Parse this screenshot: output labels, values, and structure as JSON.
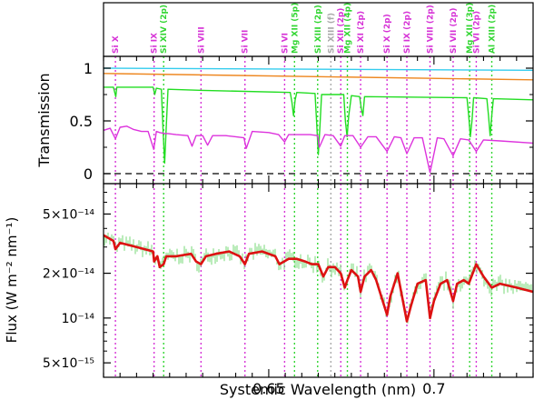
{
  "chart_data": [
    {
      "type": "line",
      "panel": "top",
      "ylabel": "Transmission",
      "ylim": [
        -0.1,
        1.18
      ],
      "yticks": [
        "0",
        "0.5",
        "1"
      ],
      "xlim": [
        0.6,
        0.73
      ],
      "line_labels": [
        {
          "text": "Si X",
          "x": 0.6036,
          "color": "#d633d6"
        },
        {
          "text": "Si IX",
          "x": 0.6153,
          "color": "#d633d6"
        },
        {
          "text": "Si XIV (2p)",
          "x": 0.6182,
          "color": "#33d633"
        },
        {
          "text": "Si VIII",
          "x": 0.6295,
          "color": "#d633d6"
        },
        {
          "text": "Si VII",
          "x": 0.6428,
          "color": "#d633d6"
        },
        {
          "text": "Si VI",
          "x": 0.6548,
          "color": "#d633d6"
        },
        {
          "text": "Mg XII (5p)",
          "x": 0.6578,
          "color": "#33d633"
        },
        {
          "text": "Si XIII (2p)",
          "x": 0.6648,
          "color": "#33d633"
        },
        {
          "text": "Si XIII (f)",
          "x": 0.6688,
          "color": "#aaaaaa"
        },
        {
          "text": "Si XII (2p)",
          "x": 0.6718,
          "color": "#d633d6"
        },
        {
          "text": "Mg XII (4p)",
          "x": 0.6738,
          "color": "#33d633"
        },
        {
          "text": "Si XI (2p)",
          "x": 0.6778,
          "color": "#d633d6"
        },
        {
          "text": "Si X (2p)",
          "x": 0.6858,
          "color": "#d633d6"
        },
        {
          "text": "Si IX (2p)",
          "x": 0.6918,
          "color": "#d633d6"
        },
        {
          "text": "Si VIII (2p)",
          "x": 0.6988,
          "color": "#d633d6"
        },
        {
          "text": "Si VII (2p)",
          "x": 0.7058,
          "color": "#d633d6"
        },
        {
          "text": "Mg XII (3p)",
          "x": 0.7108,
          "color": "#33d633"
        },
        {
          "text": "Si VI (2p)",
          "x": 0.7128,
          "color": "#d633d6"
        },
        {
          "text": "Al XIII (2p)",
          "x": 0.7175,
          "color": "#33d633"
        }
      ],
      "series": [
        {
          "color": "#33ccee",
          "x": [
            0.6,
            0.73
          ],
          "y": [
            1.0,
            0.98
          ]
        },
        {
          "color": "#ee8822",
          "x": [
            0.6,
            0.73
          ],
          "y": [
            0.95,
            0.89
          ]
        },
        {
          "color": "#22dd22",
          "x": [
            0.6,
            0.603,
            0.6037,
            0.604,
            0.615,
            0.6155,
            0.616,
            0.6175,
            0.618,
            0.6185,
            0.619,
            0.6195,
            0.63,
            0.6565,
            0.657,
            0.6575,
            0.658,
            0.6585,
            0.664,
            0.6645,
            0.665,
            0.6655,
            0.666,
            0.6727,
            0.6732,
            0.6737,
            0.6742,
            0.675,
            0.6775,
            0.678,
            0.6785,
            0.679,
            0.71,
            0.7105,
            0.711,
            0.7115,
            0.712,
            0.716,
            0.7165,
            0.717,
            0.7175,
            0.718,
            0.73
          ],
          "y": [
            0.82,
            0.82,
            0.73,
            0.82,
            0.82,
            0.75,
            0.81,
            0.8,
            0.42,
            0.1,
            0.45,
            0.8,
            0.79,
            0.77,
            0.68,
            0.55,
            0.7,
            0.77,
            0.76,
            0.48,
            0.18,
            0.45,
            0.75,
            0.75,
            0.5,
            0.35,
            0.55,
            0.74,
            0.73,
            0.62,
            0.55,
            0.73,
            0.72,
            0.55,
            0.35,
            0.5,
            0.72,
            0.71,
            0.55,
            0.36,
            0.55,
            0.71,
            0.7
          ]
        },
        {
          "color": "#dd33dd",
          "x": [
            0.6,
            0.602,
            0.6036,
            0.605,
            0.607,
            0.609,
            0.6115,
            0.6135,
            0.6152,
            0.616,
            0.617,
            0.6185,
            0.6195,
            0.622,
            0.6255,
            0.6268,
            0.628,
            0.63,
            0.6315,
            0.633,
            0.637,
            0.64,
            0.6425,
            0.6432,
            0.645,
            0.65,
            0.653,
            0.6548,
            0.656,
            0.6575,
            0.659,
            0.6625,
            0.6648,
            0.6653,
            0.667,
            0.6695,
            0.6718,
            0.673,
            0.6755,
            0.6778,
            0.68,
            0.6825,
            0.6858,
            0.688,
            0.69,
            0.6918,
            0.694,
            0.6965,
            0.6988,
            0.701,
            0.703,
            0.7058,
            0.708,
            0.7105,
            0.7128,
            0.715,
            0.72,
            0.73
          ],
          "y": [
            0.41,
            0.43,
            0.33,
            0.44,
            0.45,
            0.42,
            0.4,
            0.4,
            0.23,
            0.4,
            0.39,
            0.38,
            0.38,
            0.37,
            0.36,
            0.26,
            0.36,
            0.36,
            0.27,
            0.36,
            0.36,
            0.35,
            0.34,
            0.24,
            0.4,
            0.39,
            0.37,
            0.3,
            0.37,
            0.37,
            0.37,
            0.37,
            0.36,
            0.25,
            0.37,
            0.36,
            0.26,
            0.36,
            0.36,
            0.25,
            0.35,
            0.35,
            0.21,
            0.35,
            0.34,
            0.19,
            0.34,
            0.34,
            0.01,
            0.34,
            0.33,
            0.17,
            0.33,
            0.32,
            0.21,
            0.32,
            0.31,
            0.29
          ]
        }
      ]
    },
    {
      "type": "line",
      "panel": "bottom",
      "xlabel": "Systemic Wavelength (nm)",
      "ylabel": "Flux (W m⁻² nm⁻¹)",
      "yscale": "log",
      "ylim": [
        4e-15,
        8e-14
      ],
      "xlim": [
        0.6,
        0.73
      ],
      "xticks": [
        "0.65",
        "0.7"
      ],
      "yticks": [
        "5×10⁻¹⁴",
        "2×10⁻¹⁴",
        "10⁻¹⁴",
        "5×10⁻¹⁵"
      ],
      "series": [
        {
          "color": "#dd1111",
          "x": [
            0.6,
            0.603,
            0.6036,
            0.605,
            0.61,
            0.615,
            0.6153,
            0.6163,
            0.617,
            0.6182,
            0.619,
            0.622,
            0.6265,
            0.628,
            0.6295,
            0.631,
            0.634,
            0.638,
            0.6412,
            0.6428,
            0.644,
            0.648,
            0.652,
            0.6532,
            0.656,
            0.6585,
            0.661,
            0.663,
            0.665,
            0.6665,
            0.668,
            0.67,
            0.6718,
            0.673,
            0.6738,
            0.675,
            0.677,
            0.6778,
            0.679,
            0.681,
            0.6825,
            0.6858,
            0.6868,
            0.688,
            0.689,
            0.6918,
            0.693,
            0.695,
            0.6975,
            0.6988,
            0.7,
            0.702,
            0.704,
            0.7058,
            0.707,
            0.709,
            0.7105,
            0.7128,
            0.715,
            0.7175,
            0.72,
            0.725,
            0.73
          ],
          "y": [
            3.6e-14,
            3.3e-14,
            2.9e-14,
            3.2e-14,
            3e-14,
            2.8e-14,
            2.4e-14,
            2.6e-14,
            2.2e-14,
            2.3e-14,
            2.6e-14,
            2.6e-14,
            2.7e-14,
            2.4e-14,
            2.3e-14,
            2.6e-14,
            2.7e-14,
            2.8e-14,
            2.6e-14,
            2.3e-14,
            2.7e-14,
            2.8e-14,
            2.6e-14,
            2.3e-14,
            2.5e-14,
            2.5e-14,
            2.4e-14,
            2.3e-14,
            2.3e-14,
            1.9e-14,
            2.2e-14,
            2.2e-14,
            2e-14,
            1.6e-14,
            1.8e-14,
            2.1e-14,
            1.9e-14,
            1.5e-14,
            1.9e-14,
            2.1e-14,
            1.8e-14,
            1.05e-14,
            1.4e-14,
            1.7e-14,
            2e-14,
            9.5e-15,
            1.2e-14,
            1.7e-14,
            1.8e-14,
            1e-14,
            1.3e-14,
            1.7e-14,
            1.8e-14,
            1.3e-14,
            1.7e-14,
            1.8e-14,
            1.7e-14,
            2.3e-14,
            1.9e-14,
            1.6e-14,
            1.7e-14,
            1.6e-14,
            1.5e-14
          ]
        }
      ]
    }
  ]
}
